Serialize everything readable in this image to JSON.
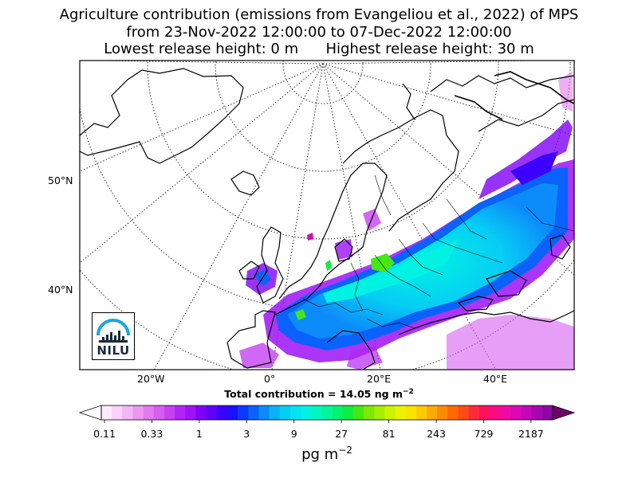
{
  "title": {
    "line1": "Agriculture contribution (emissions from Evangeliou et al., 2022) of MPS",
    "line2": "from 23-Nov-2022 12:00:00 to 07-Dec-2022 12:00:00",
    "line3": "Lowest release height: 0 m      Highest release height: 30 m"
  },
  "map": {
    "lat_labels": [
      "50°N",
      "40°N"
    ],
    "lon_labels": [
      "20°W",
      "0°",
      "20°E",
      "40°E"
    ]
  },
  "total": {
    "text": "Total contribution = 14.05 ng m",
    "exponent": "−2"
  },
  "colorbar": {
    "ticks": [
      "0.11",
      "0.33",
      "1",
      "3",
      "9",
      "27",
      "81",
      "243",
      "729",
      "2187"
    ],
    "unit": "pg m",
    "unit_exponent": "−2",
    "colors": [
      "#ffe9ff",
      "#fbd2fb",
      "#f3b6f6",
      "#ec98f3",
      "#e27aef",
      "#d65ef0",
      "#c641f2",
      "#b324f4",
      "#9e12f6",
      "#8100f8",
      "#5f00f9",
      "#3b00fb",
      "#1a10fc",
      "#0a3afc",
      "#0a62fb",
      "#0c8bfa",
      "#0ab2f7",
      "#06cdf4",
      "#03e3f0",
      "#00f2e2",
      "#00f6bf",
      "#00f79b",
      "#00f36f",
      "#13ec40",
      "#46e715",
      "#79ea00",
      "#a6ef00",
      "#ccf300",
      "#ecf300",
      "#fae300",
      "#fdc900",
      "#fdaa00",
      "#fd8a00",
      "#fd6a00",
      "#fe4b1a",
      "#ff2a3a",
      "#ff1160",
      "#ff0a86",
      "#f00aa5",
      "#dc08b5",
      "#c407b8",
      "#aa06b0",
      "#8f04a6"
    ]
  },
  "logo": {
    "text": "NILU"
  }
}
